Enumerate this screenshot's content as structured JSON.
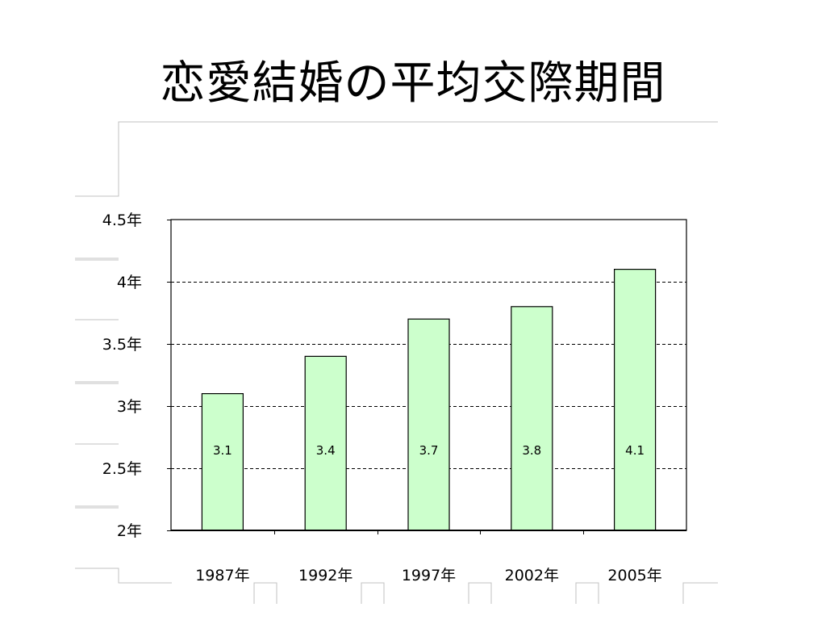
{
  "slide": {
    "title": "恋愛結婚の平均交際期間"
  },
  "colors": {
    "bar_fill": "#ccffcc",
    "bar_stroke": "#000000",
    "grid": "#000000",
    "frame_line": "#c0c0c0"
  },
  "chart_data": {
    "type": "bar",
    "title": "",
    "xlabel": "",
    "ylabel": "",
    "categories": [
      "1987年",
      "1992年",
      "1997年",
      "2002年",
      "2005年"
    ],
    "values": [
      3.1,
      3.4,
      3.7,
      3.8,
      4.1
    ],
    "data_labels": [
      "3.1",
      "3.4",
      "3.7",
      "3.8",
      "4.1"
    ],
    "ylim": [
      2,
      4.5
    ],
    "yticks": [
      2,
      2.5,
      3,
      3.5,
      4,
      4.5
    ],
    "ytick_labels": [
      "2年",
      "2.5年",
      "3年",
      "3.5年",
      "4年",
      "4.5年"
    ],
    "grid": "dashed horizontal",
    "legend": "none"
  }
}
